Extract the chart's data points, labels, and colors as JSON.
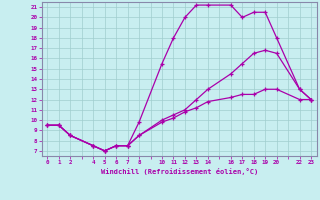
{
  "xlabel": "Windchill (Refroidissement éolien,°C)",
  "bg_color": "#c8eef0",
  "grid_color": "#a0cece",
  "line_color": "#aa00aa",
  "spine_color": "#8888aa",
  "xlim": [
    -0.5,
    23.5
  ],
  "ylim": [
    6.5,
    21.5
  ],
  "xtick_positions": [
    0,
    1,
    2,
    3,
    4,
    5,
    6,
    7,
    8,
    9,
    10,
    11,
    12,
    13,
    14,
    15,
    16,
    17,
    18,
    19,
    20,
    21,
    22,
    23
  ],
  "xtick_labels": [
    "0",
    "1",
    "2",
    "",
    "4",
    "5",
    "6",
    "7",
    "8",
    "",
    "10",
    "11",
    "12",
    "13",
    "14",
    "",
    "16",
    "17",
    "18",
    "19",
    "20",
    "",
    "22",
    "23"
  ],
  "ytick_positions": [
    7,
    8,
    9,
    10,
    11,
    12,
    13,
    14,
    15,
    16,
    17,
    18,
    19,
    20,
    21
  ],
  "ytick_labels": [
    "7",
    "8",
    "9",
    "10",
    "11",
    "12",
    "13",
    "14",
    "15",
    "16",
    "17",
    "18",
    "19",
    "20",
    "21"
  ],
  "line1_x": [
    0,
    1,
    2,
    4,
    5,
    6,
    7,
    8,
    10,
    11,
    12,
    13,
    14,
    16,
    17,
    18,
    19,
    20,
    22,
    23
  ],
  "line1_y": [
    9.5,
    9.5,
    8.5,
    7.5,
    7.0,
    7.5,
    7.5,
    9.8,
    15.5,
    18.0,
    20.0,
    21.2,
    21.2,
    21.2,
    20.0,
    20.5,
    20.5,
    18.0,
    13.0,
    12.0
  ],
  "line2_x": [
    0,
    1,
    2,
    4,
    5,
    6,
    7,
    8,
    10,
    11,
    12,
    13,
    14,
    16,
    17,
    18,
    19,
    20,
    22,
    23
  ],
  "line2_y": [
    9.5,
    9.5,
    8.5,
    7.5,
    7.0,
    7.5,
    7.5,
    8.5,
    10.0,
    10.5,
    11.0,
    12.0,
    13.0,
    14.5,
    15.5,
    16.5,
    16.8,
    16.5,
    13.0,
    12.0
  ],
  "line3_x": [
    0,
    1,
    2,
    4,
    5,
    6,
    7,
    8,
    10,
    11,
    12,
    13,
    14,
    16,
    17,
    18,
    19,
    20,
    22,
    23
  ],
  "line3_y": [
    9.5,
    9.5,
    8.5,
    7.5,
    7.0,
    7.5,
    7.5,
    8.5,
    9.8,
    10.2,
    10.8,
    11.2,
    11.8,
    12.2,
    12.5,
    12.5,
    13.0,
    13.0,
    12.0,
    12.0
  ]
}
